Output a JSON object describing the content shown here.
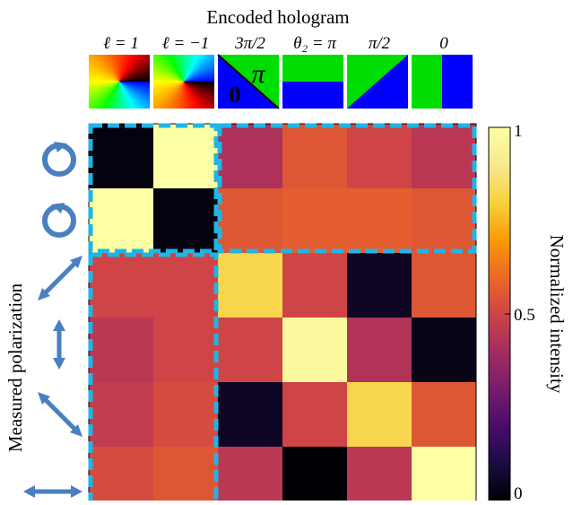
{
  "chart_data": {
    "type": "heatmap",
    "title": "Encoded hologram",
    "xlabel": "",
    "ylabel": "Measured polarization",
    "x_categories": [
      "ℓ = 1",
      "ℓ = −1",
      "3π/2",
      "θ₂ = π",
      "π/2",
      "0"
    ],
    "y_categories": [
      "right-circular",
      "left-circular",
      "diagonal",
      "vertical",
      "anti-diagonal",
      "horizontal"
    ],
    "values": [
      [
        0.02,
        1.0,
        0.42,
        0.55,
        0.5,
        0.45
      ],
      [
        1.0,
        0.02,
        0.55,
        0.57,
        0.57,
        0.55
      ],
      [
        0.5,
        0.5,
        0.82,
        0.5,
        0.05,
        0.55
      ],
      [
        0.45,
        0.5,
        0.5,
        0.97,
        0.43,
        0.03
      ],
      [
        0.47,
        0.52,
        0.05,
        0.5,
        0.82,
        0.55
      ],
      [
        0.52,
        0.55,
        0.45,
        0.0,
        0.45,
        1.0
      ]
    ],
    "colorbar": {
      "label": "Normalized intensity",
      "range": [
        0,
        1
      ],
      "ticks": [
        {
          "value": 1,
          "label": "1"
        },
        {
          "value": 0.5,
          "label": "0.5"
        },
        {
          "value": 0,
          "label": "0"
        }
      ],
      "colormap": "inferno"
    },
    "hologram_inset": {
      "pi_label": "π",
      "zero_label": "0"
    },
    "highlight_color": "#1fb5e6",
    "polarization_icon_color": "#4a7fc1"
  }
}
